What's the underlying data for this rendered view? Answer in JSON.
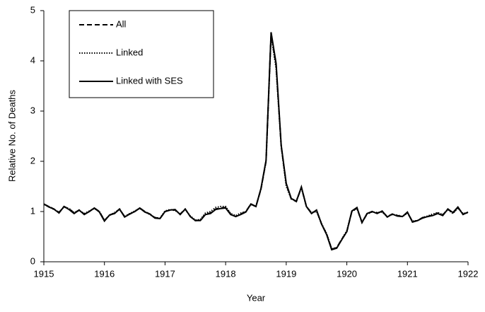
{
  "chart_data": {
    "type": "line",
    "xlabel": "Year",
    "ylabel": "Relative No. of Deaths",
    "x": [
      1915,
      1915.083,
      1915.167,
      1915.25,
      1915.333,
      1915.417,
      1915.5,
      1915.583,
      1915.667,
      1915.75,
      1915.833,
      1915.917,
      1916,
      1916.083,
      1916.167,
      1916.25,
      1916.333,
      1916.417,
      1916.5,
      1916.583,
      1916.667,
      1916.75,
      1916.833,
      1916.917,
      1917,
      1917.083,
      1917.167,
      1917.25,
      1917.333,
      1917.417,
      1917.5,
      1917.583,
      1917.667,
      1917.75,
      1917.833,
      1917.917,
      1918,
      1918.083,
      1918.167,
      1918.25,
      1918.333,
      1918.417,
      1918.5,
      1918.583,
      1918.667,
      1918.75,
      1918.833,
      1918.917,
      1919,
      1919.083,
      1919.167,
      1919.25,
      1919.333,
      1919.417,
      1919.5,
      1919.583,
      1919.667,
      1919.75,
      1919.833,
      1919.917,
      1920,
      1920.083,
      1920.167,
      1920.25,
      1920.333,
      1920.417,
      1920.5,
      1920.583,
      1920.667,
      1920.75,
      1920.833,
      1920.917,
      1921,
      1921.083,
      1921.167,
      1921.25,
      1921.333,
      1921.417,
      1921.5,
      1921.583,
      1921.667,
      1921.75,
      1921.833,
      1921.917,
      1922
    ],
    "series": [
      {
        "name": "All",
        "color": "#000000",
        "dash": "7,4",
        "values": [
          1.15,
          1.1,
          1.05,
          0.98,
          1.1,
          1.05,
          0.97,
          1.03,
          0.95,
          1.0,
          1.07,
          1.0,
          0.82,
          0.93,
          0.97,
          1.05,
          0.9,
          0.95,
          1.0,
          1.07,
          1.0,
          0.95,
          0.88,
          0.86,
          1.0,
          1.03,
          1.03,
          0.95,
          1.05,
          0.9,
          0.82,
          0.83,
          0.95,
          0.97,
          1.05,
          1.07,
          1.08,
          0.95,
          0.9,
          0.95,
          1.0,
          1.15,
          1.1,
          1.45,
          2.0,
          4.55,
          3.9,
          2.3,
          1.55,
          1.25,
          1.2,
          1.48,
          1.1,
          0.97,
          1.02,
          0.75,
          0.55,
          0.25,
          0.28,
          0.45,
          0.6,
          1.0,
          1.07,
          0.78,
          0.95,
          1.0,
          0.97,
          1.0,
          0.9,
          0.95,
          0.92,
          0.9,
          0.98,
          0.8,
          0.82,
          0.88,
          0.9,
          0.93,
          0.97,
          0.93,
          1.05,
          0.97,
          1.08,
          0.95,
          0.98
        ]
      },
      {
        "name": "Linked",
        "color": "#000000",
        "dash": "1.5,2",
        "values": [
          1.14,
          1.1,
          1.04,
          0.99,
          1.09,
          1.06,
          0.98,
          1.02,
          0.96,
          1.01,
          1.06,
          1.0,
          0.83,
          0.92,
          0.98,
          1.04,
          0.9,
          0.96,
          1.01,
          1.06,
          1.0,
          0.94,
          0.88,
          0.87,
          1.01,
          1.04,
          1.02,
          0.95,
          1.04,
          0.91,
          0.83,
          0.84,
          0.97,
          1.0,
          1.08,
          1.1,
          1.1,
          0.96,
          0.92,
          0.97,
          1.0,
          1.14,
          1.1,
          1.44,
          2.0,
          4.5,
          3.85,
          2.3,
          1.5,
          1.25,
          1.22,
          1.47,
          1.1,
          0.98,
          1.0,
          0.76,
          0.56,
          0.26,
          0.28,
          0.45,
          0.62,
          1.0,
          1.06,
          0.79,
          0.95,
          0.99,
          0.98,
          0.99,
          0.9,
          0.94,
          0.93,
          0.9,
          0.97,
          0.81,
          0.82,
          0.88,
          0.91,
          0.95,
          0.98,
          0.94,
          1.04,
          0.96,
          1.07,
          0.96,
          0.98
        ]
      },
      {
        "name": "Linked with SES",
        "color": "#000000",
        "dash": "none",
        "values": [
          1.15,
          1.09,
          1.05,
          0.97,
          1.1,
          1.04,
          0.96,
          1.03,
          0.94,
          1.0,
          1.07,
          0.99,
          0.81,
          0.93,
          0.96,
          1.05,
          0.89,
          0.95,
          1.0,
          1.07,
          0.99,
          0.95,
          0.87,
          0.86,
          1.0,
          1.03,
          1.04,
          0.94,
          1.05,
          0.9,
          0.82,
          0.82,
          0.94,
          0.96,
          1.04,
          1.06,
          1.07,
          0.94,
          0.9,
          0.94,
          0.99,
          1.15,
          1.1,
          1.46,
          2.02,
          4.57,
          3.95,
          2.32,
          1.56,
          1.26,
          1.2,
          1.49,
          1.1,
          0.96,
          1.03,
          0.75,
          0.54,
          0.24,
          0.27,
          0.44,
          0.6,
          1.01,
          1.08,
          0.78,
          0.96,
          1.0,
          0.96,
          1.01,
          0.89,
          0.95,
          0.91,
          0.9,
          0.99,
          0.79,
          0.82,
          0.87,
          0.9,
          0.92,
          0.96,
          0.92,
          1.05,
          0.98,
          1.09,
          0.94,
          0.99
        ]
      }
    ],
    "xlim": [
      1915,
      1922
    ],
    "xticks": [
      1915,
      1916,
      1917,
      1918,
      1919,
      1920,
      1921,
      1922
    ],
    "ylim": [
      0,
      5
    ],
    "yticks": [
      0,
      1,
      2,
      3,
      4,
      5
    ],
    "grid": false,
    "legend": "upper left"
  }
}
